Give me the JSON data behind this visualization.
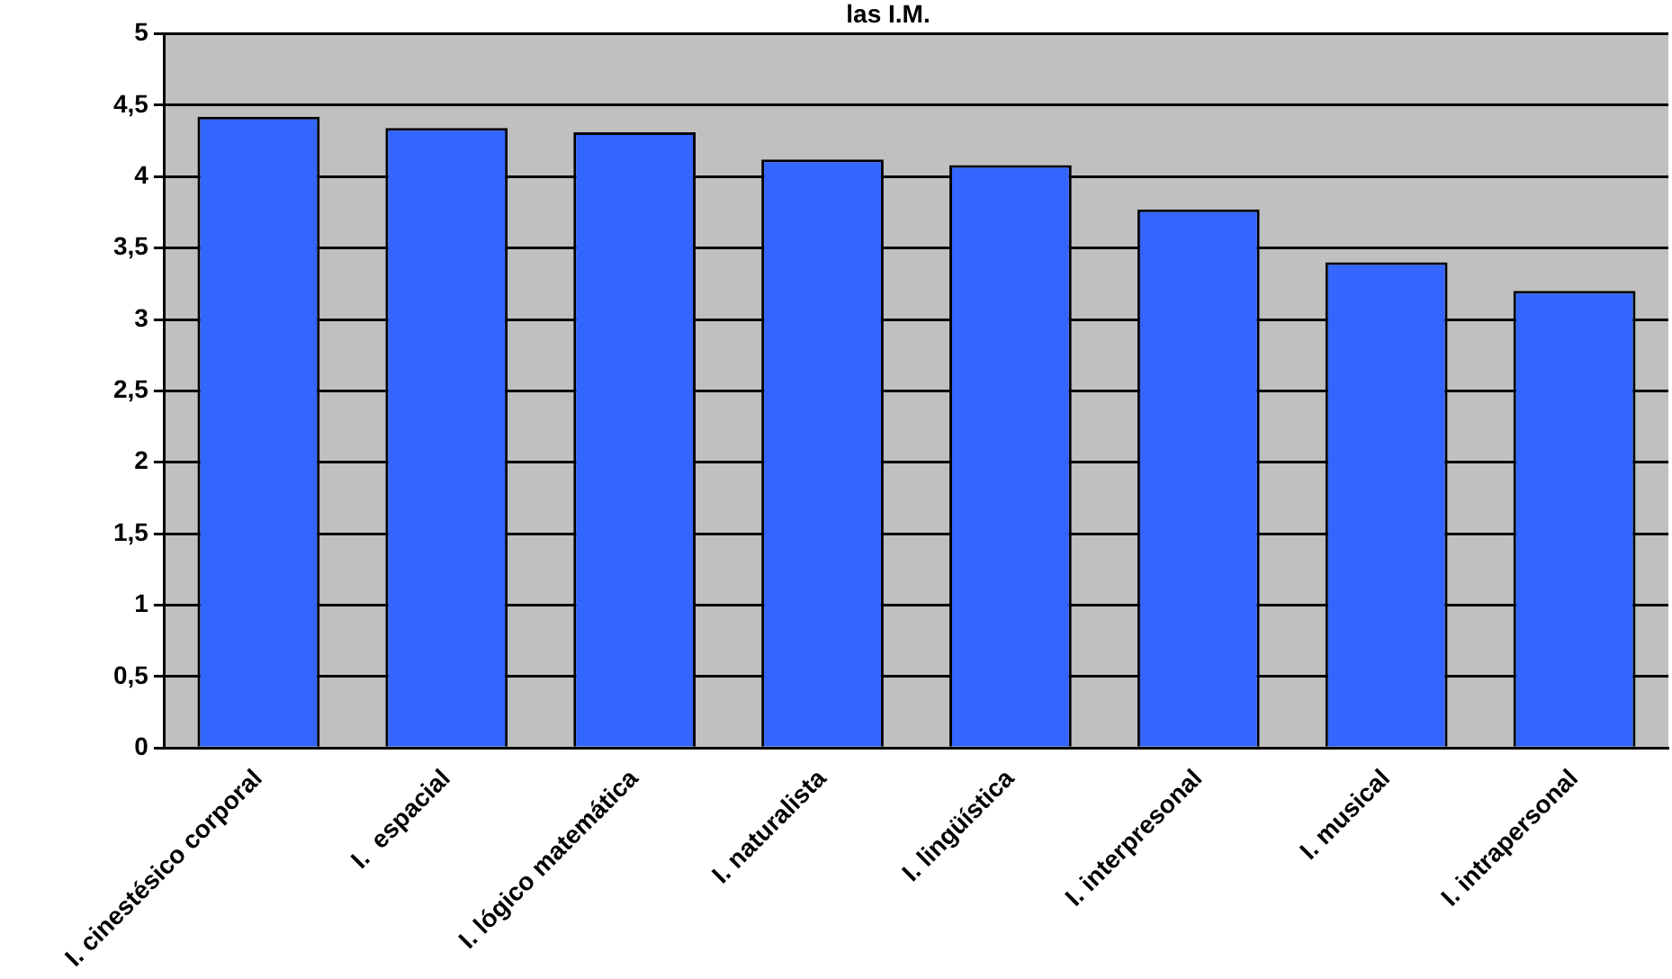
{
  "chart_data": {
    "type": "bar",
    "title": "las I.M.",
    "categories": [
      "I. cinestésico corporal",
      "I.  espacial",
      "I. lógico matemática",
      "I. naturalista",
      "I. lingüística",
      "I. interpresonal",
      "I. musical",
      "I. intrapersonal"
    ],
    "values": [
      4.42,
      4.34,
      4.31,
      4.12,
      4.08,
      3.77,
      3.4,
      3.2
    ],
    "color": "#3366ff",
    "ylim": [
      0,
      5
    ],
    "yticks": [
      0,
      {
        "value": 0.5,
        "label": "0,5"
      },
      1,
      {
        "value": 1.5,
        "label": "1,5"
      },
      2,
      {
        "value": 2.5,
        "label": "2,5"
      },
      3,
      {
        "value": 3.5,
        "label": "3,5"
      },
      4,
      {
        "value": 4.5,
        "label": "4,5"
      },
      5
    ],
    "grid": "y",
    "legend": false
  }
}
